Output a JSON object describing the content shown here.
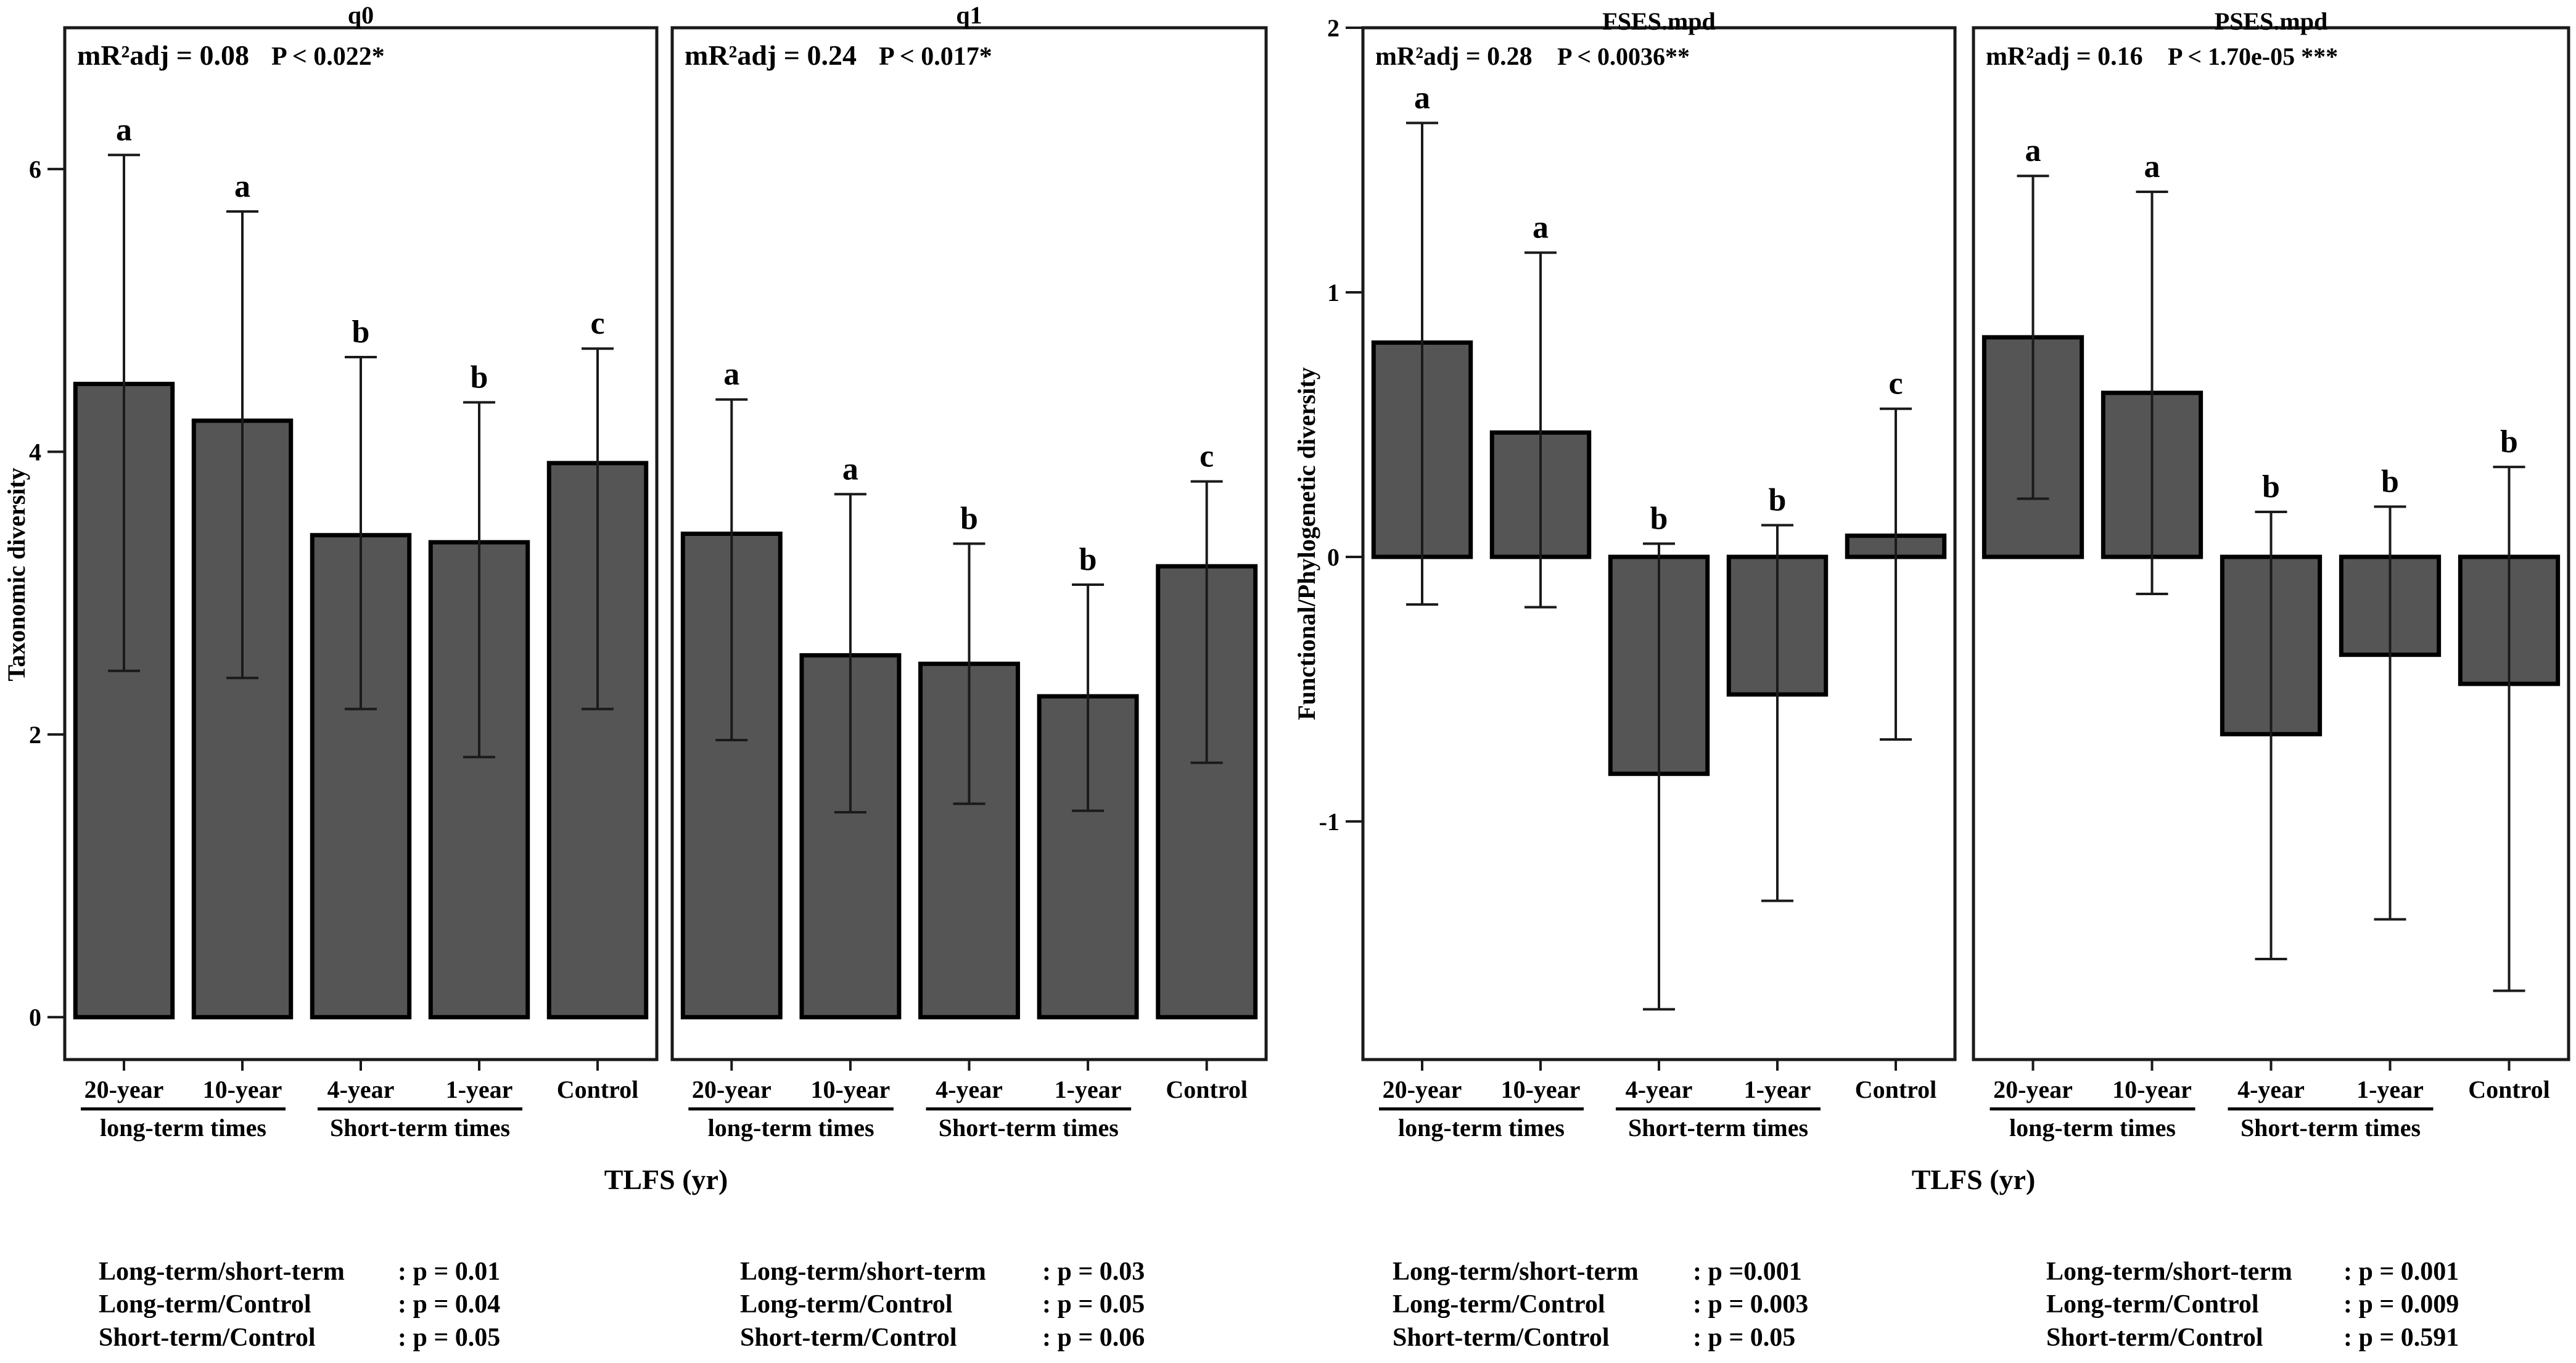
{
  "chart_data": [
    {
      "type": "bar",
      "title": "q0",
      "ylabel": "Taxonomic diversity",
      "xlabel": "TLFS (yr)",
      "categories": [
        "20-year",
        "10-year",
        "4-year",
        "1-year",
        "Control"
      ],
      "groups": [
        "long-term times",
        "Short-term times"
      ],
      "values": [
        4.48,
        4.22,
        3.41,
        3.36,
        3.92
      ],
      "error_low": [
        2.45,
        2.4,
        2.18,
        1.84,
        2.18
      ],
      "error_high": [
        6.1,
        5.7,
        4.67,
        4.35,
        4.73
      ],
      "letters": [
        "a",
        "a",
        "b",
        "b",
        "c"
      ],
      "stat_label": "mR²adj = 0.08",
      "p_label": "P < 0.022*",
      "ylim": [
        -0.3,
        7.0
      ],
      "yticks": [
        0,
        2,
        4,
        6
      ],
      "ytick_labels": [
        "0",
        "2",
        "4",
        "6"
      ],
      "comparisons": [
        {
          "label": "Long-term/short-term",
          "value": ": p = 0.01"
        },
        {
          "label": "Long-term/Control",
          "value": ": p = 0.04"
        },
        {
          "label": "Short-term/Control",
          "value": ": p = 0.05"
        }
      ]
    },
    {
      "type": "bar",
      "title": "q1",
      "xlabel": "TLFS (yr)",
      "categories": [
        "20-year",
        "10-year",
        "4-year",
        "1-year",
        "Control"
      ],
      "groups": [
        "long-term times",
        "Short-term times"
      ],
      "values": [
        3.42,
        2.56,
        2.5,
        2.27,
        3.19
      ],
      "error_low": [
        1.96,
        1.45,
        1.51,
        1.46,
        1.8
      ],
      "error_high": [
        4.37,
        3.7,
        3.35,
        3.06,
        3.79
      ],
      "letters": [
        "a",
        "a",
        "b",
        "b",
        "c"
      ],
      "stat_label": "mR²adj = 0.24",
      "p_label": "P < 0.017*",
      "ylim": [
        -0.3,
        7.0
      ],
      "comparisons": [
        {
          "label": "Long-term/short-term",
          "value": ": p = 0.03"
        },
        {
          "label": "Long-term/Control",
          "value": ": p = 0.05"
        },
        {
          "label": "Short-term/Control",
          "value": ": p = 0.06"
        }
      ]
    },
    {
      "type": "bar",
      "title": "FSES.mpd",
      "ylabel": "Functional/Phylogenetic diversity",
      "xlabel": "TLFS (yr)",
      "categories": [
        "20-year",
        "10-year",
        "4-year",
        "1-year",
        "Control"
      ],
      "groups": [
        "long-term times",
        "Short-term times"
      ],
      "values": [
        0.81,
        0.47,
        -0.82,
        -0.52,
        0.08
      ],
      "error_low": [
        -0.18,
        -0.19,
        -1.71,
        -1.3,
        -0.69
      ],
      "error_high": [
        1.64,
        1.15,
        0.05,
        0.12,
        0.56
      ],
      "letters": [
        "a",
        "a",
        "b",
        "b",
        "c"
      ],
      "stat_label": "mR²adj = 0.28",
      "p_label": "P < 0.0036**",
      "ylim": [
        -1.9,
        2.0
      ],
      "yticks": [
        -1,
        0,
        1,
        2
      ],
      "ytick_labels": [
        "-1",
        "0",
        "1",
        "2"
      ],
      "comparisons": [
        {
          "label": "Long-term/short-term",
          "value": ": p =0.001"
        },
        {
          "label": "Long-term/Control",
          "value": ": p = 0.003"
        },
        {
          "label": "Short-term/Control",
          "value": ": p = 0.05"
        }
      ]
    },
    {
      "type": "bar",
      "title": "PSES.mpd",
      "xlabel": "TLFS (yr)",
      "categories": [
        "20-year",
        "10-year",
        "4-year",
        "1-year",
        "Control"
      ],
      "groups": [
        "long-term times",
        "Short-term times"
      ],
      "values": [
        0.83,
        0.62,
        -0.67,
        -0.37,
        -0.48
      ],
      "error_low": [
        0.22,
        -0.14,
        -1.52,
        -1.37,
        -1.64
      ],
      "error_high": [
        1.44,
        1.38,
        0.17,
        0.19,
        0.34
      ],
      "letters": [
        "a",
        "a",
        "b",
        "b",
        "b"
      ],
      "stat_label": "mR²adj = 0.16",
      "p_label": "P < 1.70e-05 ***",
      "ylim": [
        -1.9,
        2.0
      ],
      "comparisons": [
        {
          "label": "Long-term/short-term",
          "value": ": p = 0.001"
        },
        {
          "label": "Long-term/Control",
          "value": ": p = 0.009"
        },
        {
          "label": "Short-term/Control",
          "value": ": p = 0.591"
        }
      ]
    }
  ]
}
